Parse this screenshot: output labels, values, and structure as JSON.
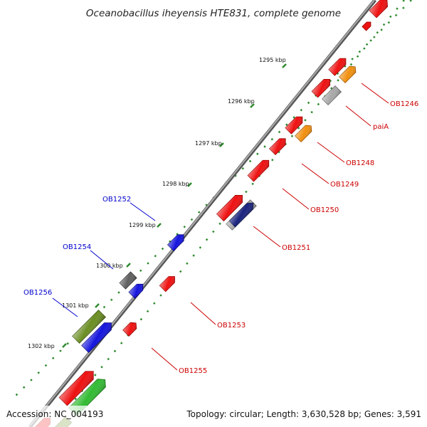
{
  "title": "Oceanobacillus iheyensis HTE831, complete genome",
  "footer": {
    "accession": "Accession: NC_004193",
    "summary": "Topology: circular; Length: 3,630,528 bp; Genes: 3,591"
  },
  "colors": {
    "backbone": "#808080",
    "tick_track": "#2e8b2e",
    "label_red": "#cc0000",
    "label_blue": "#0000cc",
    "gene_red": "#ee1111",
    "gene_orange": "#f09010",
    "gene_grey": "#a8a8a8",
    "gene_darkgrey": "#606060",
    "gene_blue": "#1515dd",
    "gene_navy": "#1a237e",
    "gene_olive": "#6b8e23",
    "gene_green": "#33bb33"
  },
  "scale_labels": [
    "1295 kbp",
    "1296 kbp",
    "1297 kbp",
    "1298 kbp",
    "1299 kbp",
    "1300 kbp",
    "1301 kbp",
    "1302 kbp"
  ],
  "gene_labels_red": [
    "OB1246",
    "paiA",
    "OB1248",
    "OB1249",
    "OB1250",
    "OB1251",
    "OB1253",
    "OB1255"
  ],
  "gene_labels_blue": [
    "OB1252",
    "OB1254",
    "OB1256"
  ]
}
